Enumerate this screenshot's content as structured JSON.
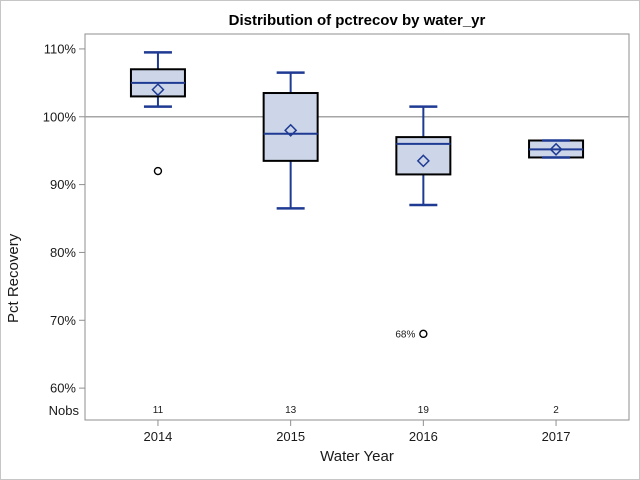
{
  "chart_data": {
    "type": "boxplot",
    "title": "Distribution of pctrecov by water_yr",
    "xlabel": "Water Year",
    "ylabel": "Pct Recovery",
    "nobs_label": "Nobs",
    "categories": [
      "2014",
      "2015",
      "2016",
      "2017"
    ],
    "nobs": [
      "11",
      "13",
      "19",
      "2"
    ],
    "y_ticks": [
      110,
      100,
      90,
      80,
      70,
      60
    ],
    "y_tick_suffix": "%",
    "ylim": [
      55.3,
      112.2
    ],
    "reference_line": 100,
    "grid": "off",
    "legend": "none",
    "series": [
      {
        "category": "2014",
        "n": 11,
        "whisker_low": 101.5,
        "q1": 103,
        "median": 105,
        "q3": 107,
        "whisker_high": 109.5,
        "mean": 104,
        "outliers": [
          {
            "value": 92,
            "label": ""
          }
        ]
      },
      {
        "category": "2015",
        "n": 13,
        "whisker_low": 86.5,
        "q1": 93.5,
        "median": 97.5,
        "q3": 103.5,
        "whisker_high": 106.5,
        "mean": 98,
        "outliers": []
      },
      {
        "category": "2016",
        "n": 19,
        "whisker_low": 87,
        "q1": 91.5,
        "median": 96,
        "q3": 97,
        "whisker_high": 101.5,
        "mean": 93.5,
        "outliers": [
          {
            "value": 68,
            "label": "68%"
          }
        ]
      },
      {
        "category": "2017",
        "n": 2,
        "whisker_low": 94,
        "q1": 94,
        "median": 95.2,
        "q3": 96.5,
        "whisker_high": 96.5,
        "mean": 95.2,
        "outliers": []
      }
    ],
    "colors": {
      "box_fill": "#ccd6e8",
      "box_stroke": "#000000",
      "whisker": "#1f3a93",
      "median": "#1f3a93",
      "mean_marker": "#1f3a93",
      "outlier": "#000000",
      "reference_line": "#a6a6a6",
      "plot_border": "#8f8f8f",
      "figure_border": "#c6c6c6",
      "text": "#1a1a1a",
      "title_text": "#000000"
    }
  }
}
